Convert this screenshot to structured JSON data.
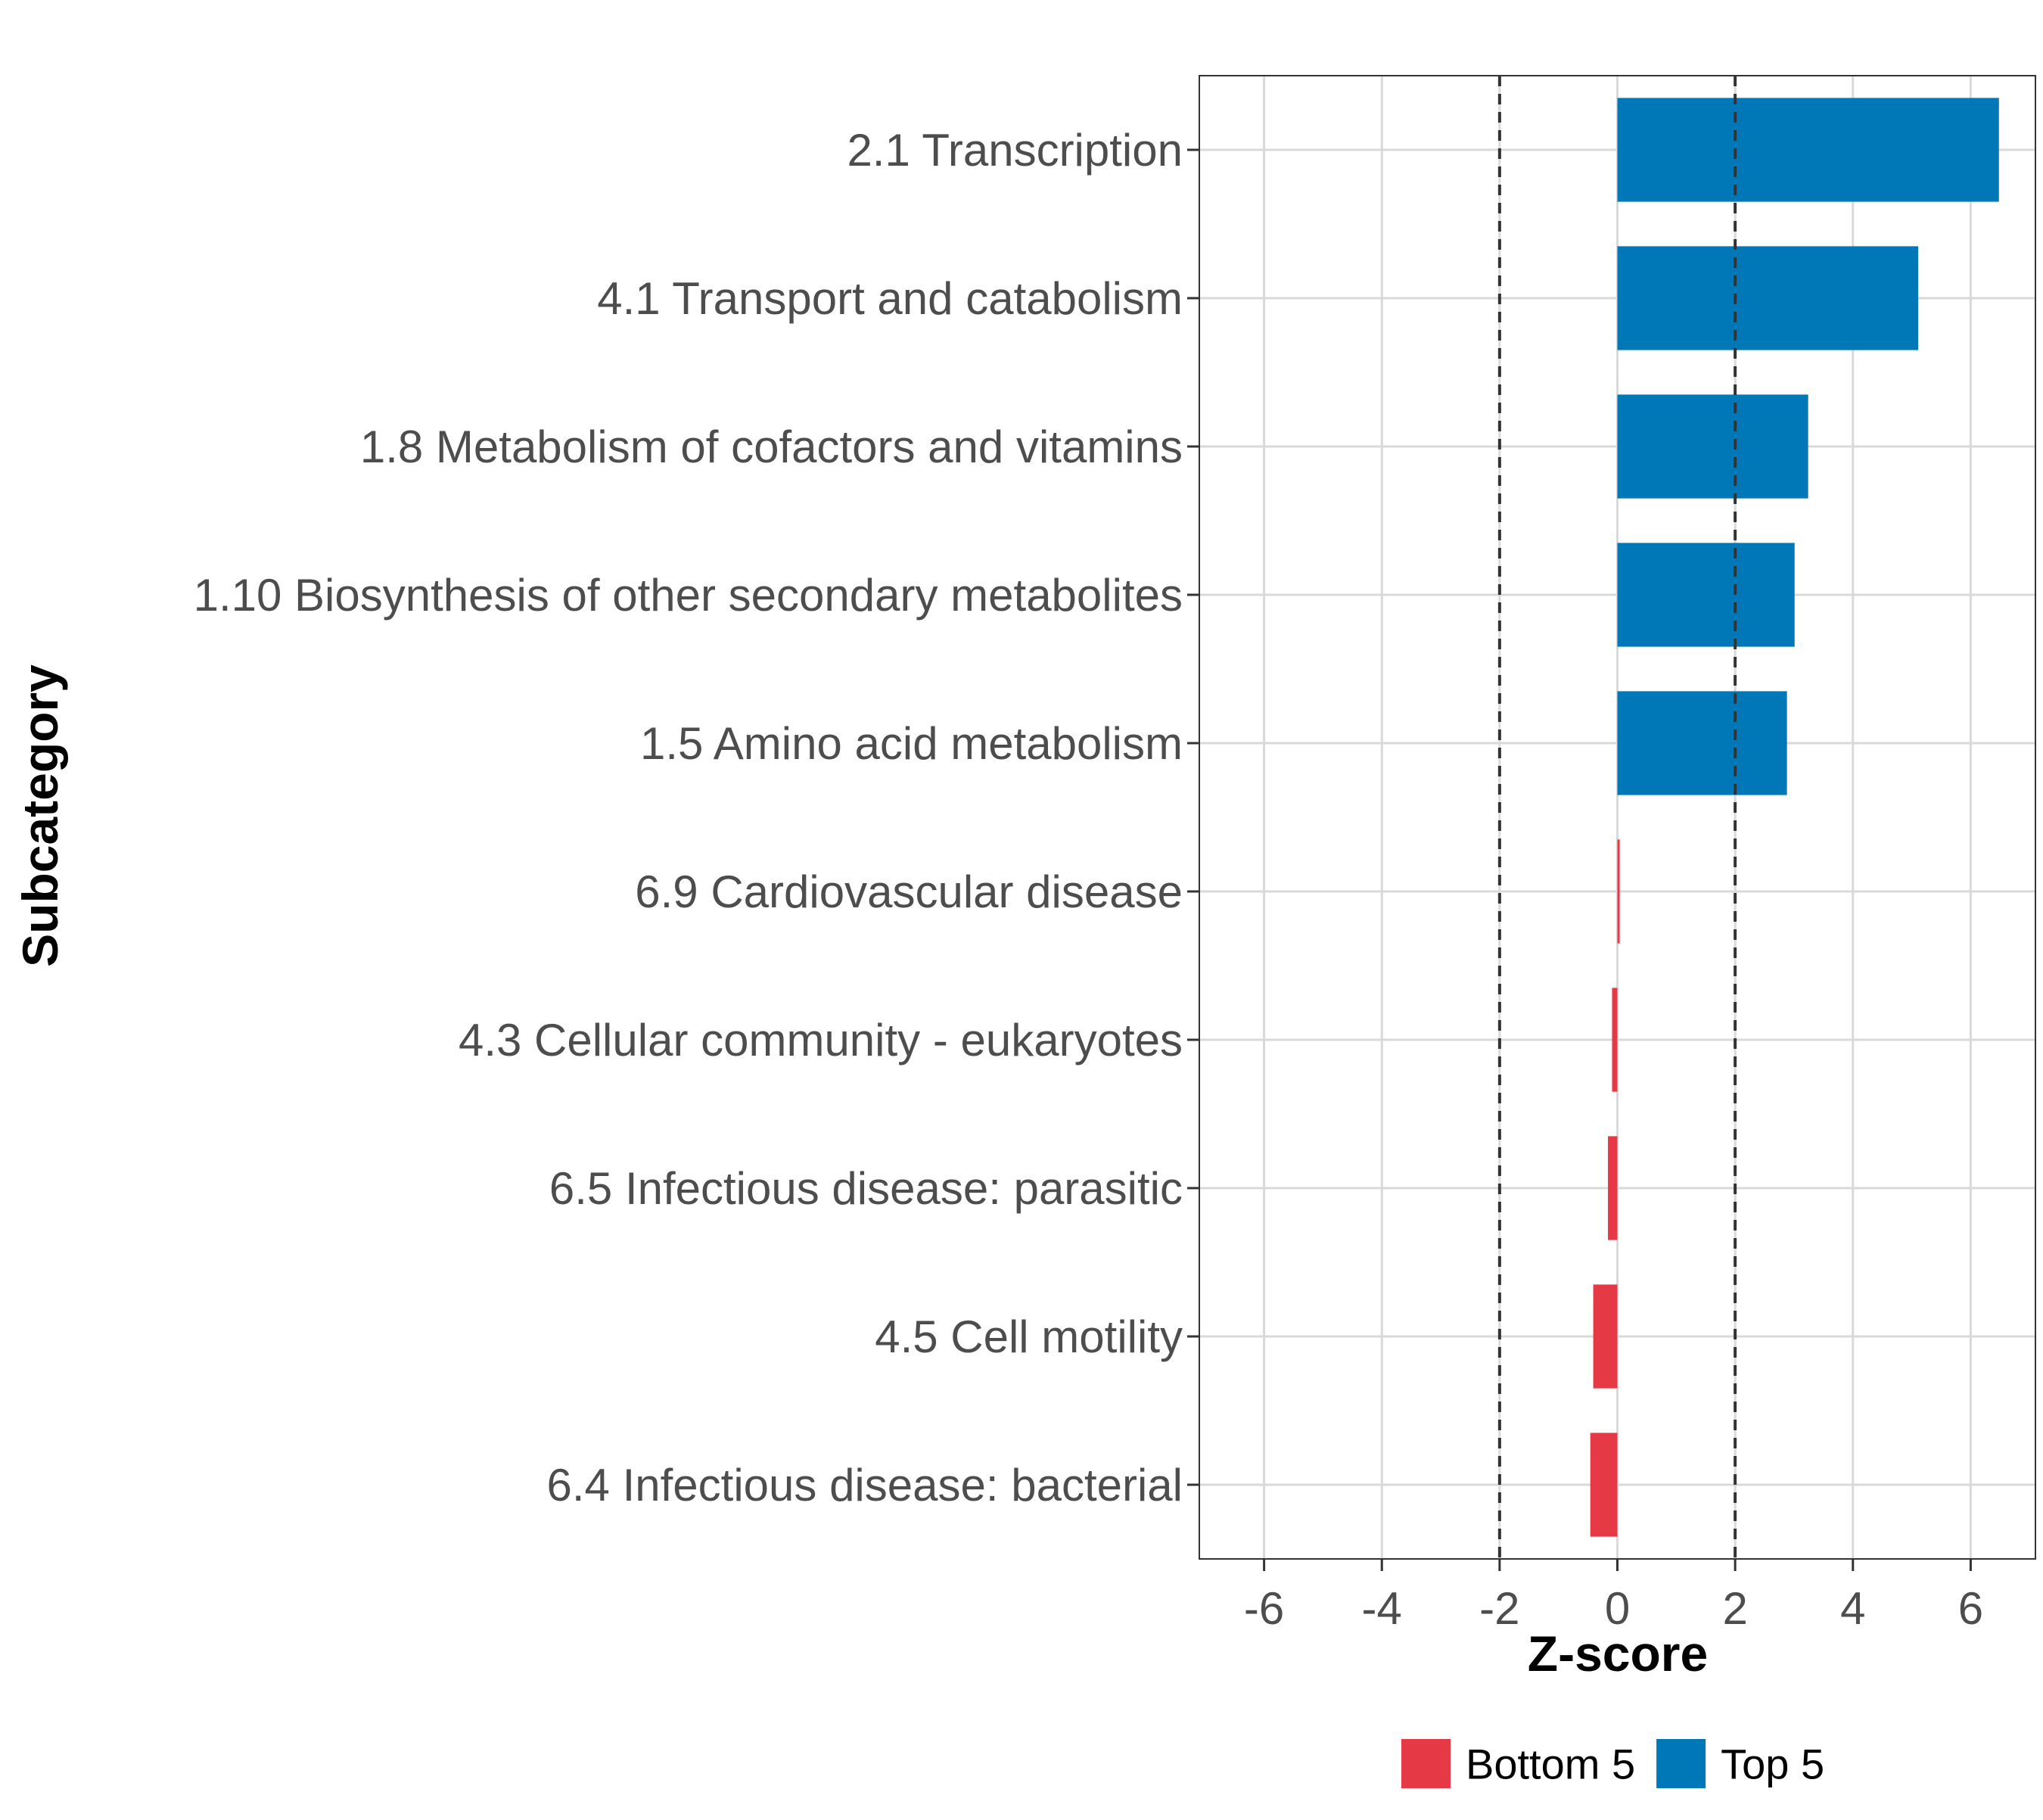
{
  "chart_data": {
    "type": "bar",
    "orientation": "horizontal",
    "title": "",
    "xlabel": "Z-score",
    "ylabel": "Subcategory",
    "xlim": [
      -7.1,
      7.1
    ],
    "x_ticks": [
      -6,
      -4,
      -2,
      0,
      2,
      4,
      6
    ],
    "x_tick_labels": [
      "-6",
      "-4",
      "-2",
      "0",
      "2",
      "4",
      "6"
    ],
    "reference_lines": [
      -2,
      2
    ],
    "grid": true,
    "legend_position": "bottom",
    "categories": [
      "2.1 Transcription",
      "4.1 Transport and catabolism",
      "1.8 Metabolism of cofactors and vitamins",
      "1.10 Biosynthesis of other secondary metabolites",
      "1.5 Amino acid metabolism",
      "6.9 Cardiovascular disease",
      "4.3 Cellular community - eukaryotes",
      "6.5 Infectious disease: parasitic",
      "4.5 Cell motility",
      "6.4 Infectious disease: bacterial"
    ],
    "values": [
      6.48,
      5.11,
      3.24,
      3.01,
      2.88,
      0.04,
      -0.09,
      -0.16,
      -0.41,
      -0.46
    ],
    "groups": [
      "Top 5",
      "Top 5",
      "Top 5",
      "Top 5",
      "Top 5",
      "Bottom 5",
      "Bottom 5",
      "Bottom 5",
      "Bottom 5",
      "Bottom 5"
    ],
    "legend": [
      {
        "name": "Bottom 5",
        "color": "#e63946"
      },
      {
        "name": "Top 5",
        "color": "#0077b6"
      }
    ]
  }
}
